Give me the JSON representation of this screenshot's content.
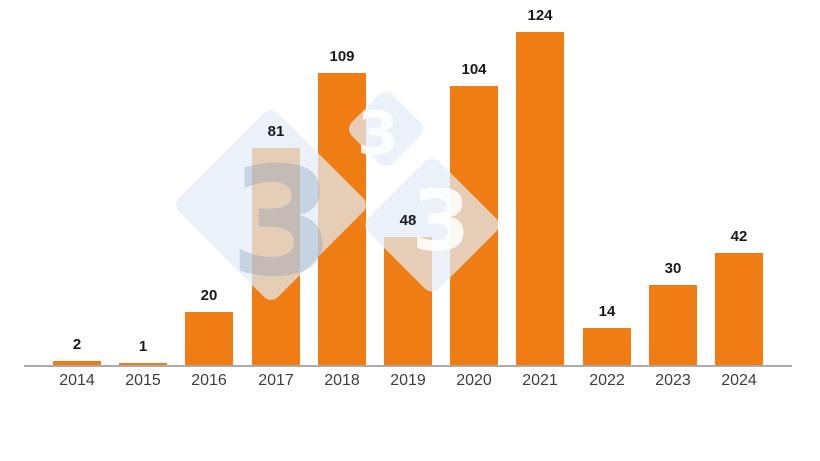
{
  "chart_data": {
    "type": "bar",
    "title": "",
    "categories": [
      "2014",
      "2015",
      "2016",
      "2017",
      "2018",
      "2019",
      "2020",
      "2021",
      "2022",
      "2023",
      "2024"
    ],
    "values": [
      2,
      1,
      20,
      81,
      109,
      48,
      104,
      124,
      14,
      30,
      42
    ],
    "xlabel": "",
    "ylabel": "",
    "ylim": [
      0,
      135
    ],
    "grid": false,
    "legend": false,
    "data_labels_shown": true,
    "bar_color": "#F07D13",
    "axis_line_color": "#ABABAB",
    "value_label_color": "#1A1A1A",
    "category_label_color": "#3D3D3D"
  },
  "watermark": {
    "glyph": "3",
    "diamond_color": "rgba(226, 236, 245, 0.72)",
    "glyph_color_large": "rgba(120, 148, 180, 0.32)",
    "glyph_color_small": "rgba(255, 255, 255, 0.85)"
  }
}
